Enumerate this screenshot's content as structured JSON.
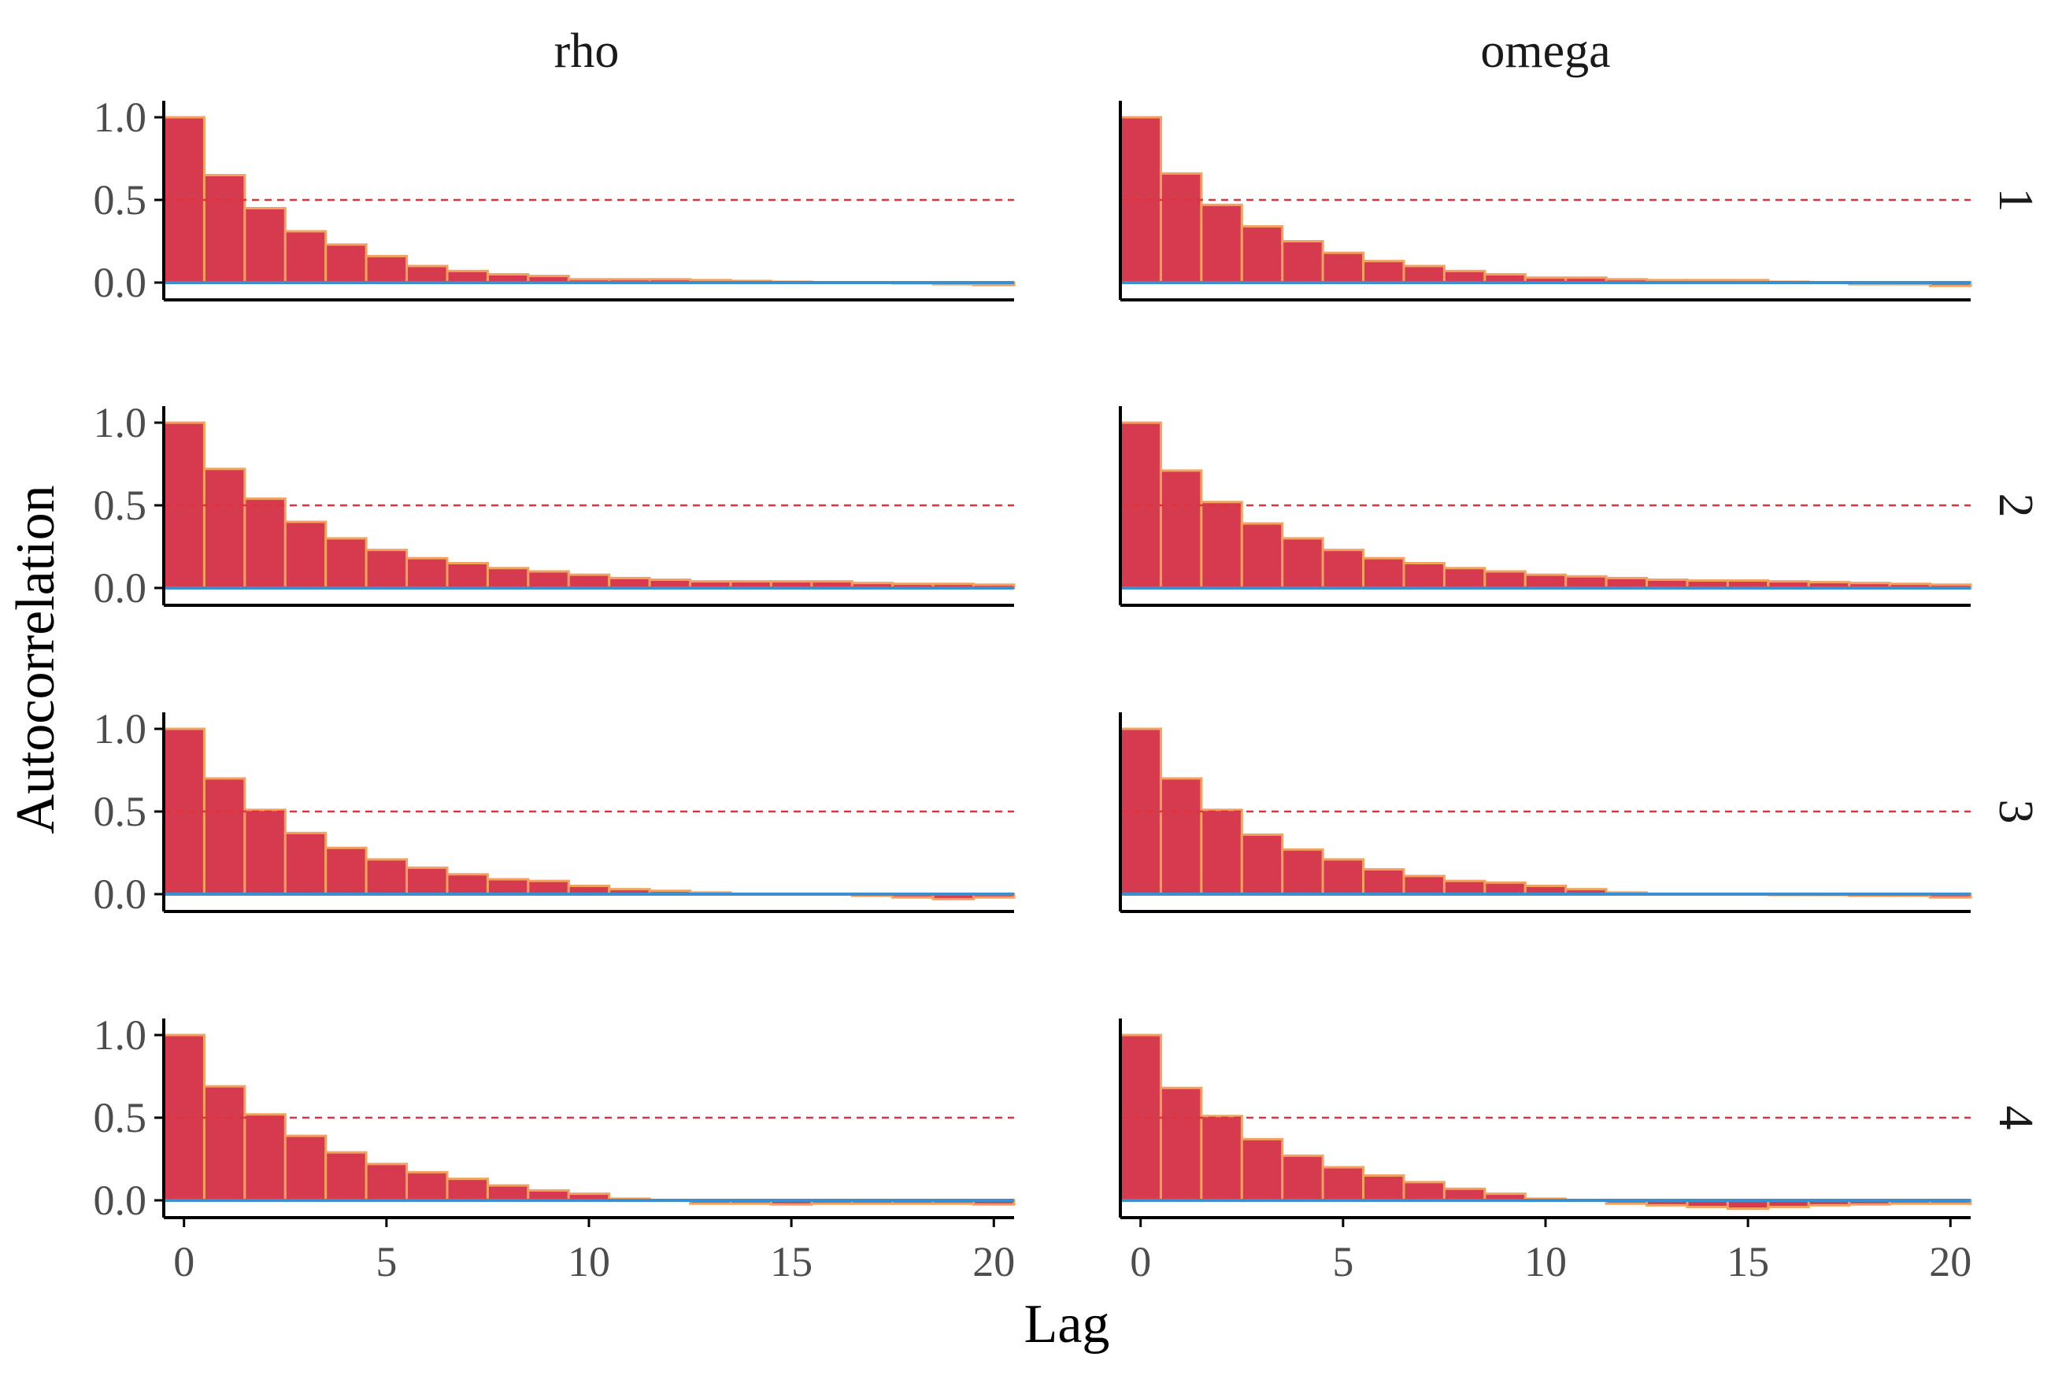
{
  "chart_data": {
    "type": "bar",
    "title": "",
    "xlabel": "Lag",
    "ylabel": "Autocorrelation",
    "columns": [
      "rho",
      "omega"
    ],
    "rows": [
      "1",
      "2",
      "3",
      "4"
    ],
    "x": [
      0,
      1,
      2,
      3,
      4,
      5,
      6,
      7,
      8,
      9,
      10,
      11,
      12,
      13,
      14,
      15,
      16,
      17,
      18,
      19,
      20
    ],
    "xlim": [
      -0.5,
      20.5
    ],
    "xticks": [
      "0",
      "5",
      "10",
      "15",
      "20"
    ],
    "xtick_values": [
      0,
      5,
      10,
      15,
      20
    ],
    "ylim": [
      -0.1,
      1.1
    ],
    "yticks": [
      "0.0",
      "0.5",
      "1.0"
    ],
    "ytick_values": [
      0.0,
      0.5,
      1.0
    ],
    "reference_line": 0.5,
    "zero_line": 0,
    "panels": [
      {
        "row": "1",
        "column": "rho",
        "values": [
          1.0,
          0.65,
          0.45,
          0.31,
          0.23,
          0.16,
          0.1,
          0.07,
          0.05,
          0.04,
          0.02,
          0.02,
          0.02,
          0.015,
          0.01,
          0.005,
          0.0,
          0.0,
          -0.005,
          -0.01,
          -0.015
        ]
      },
      {
        "row": "1",
        "column": "omega",
        "values": [
          1.0,
          0.66,
          0.47,
          0.34,
          0.25,
          0.18,
          0.13,
          0.1,
          0.07,
          0.05,
          0.03,
          0.03,
          0.02,
          0.015,
          0.015,
          0.015,
          0.005,
          0.0,
          -0.01,
          -0.01,
          -0.02
        ]
      },
      {
        "row": "2",
        "column": "rho",
        "values": [
          1.0,
          0.72,
          0.54,
          0.4,
          0.3,
          0.23,
          0.18,
          0.15,
          0.12,
          0.1,
          0.08,
          0.06,
          0.05,
          0.04,
          0.04,
          0.04,
          0.04,
          0.03,
          0.025,
          0.025,
          0.02
        ]
      },
      {
        "row": "2",
        "column": "omega",
        "values": [
          1.0,
          0.71,
          0.52,
          0.39,
          0.3,
          0.23,
          0.18,
          0.15,
          0.12,
          0.1,
          0.08,
          0.07,
          0.06,
          0.05,
          0.045,
          0.045,
          0.04,
          0.035,
          0.03,
          0.025,
          0.02
        ]
      },
      {
        "row": "3",
        "column": "rho",
        "values": [
          1.0,
          0.7,
          0.51,
          0.37,
          0.28,
          0.21,
          0.16,
          0.12,
          0.09,
          0.08,
          0.05,
          0.03,
          0.02,
          0.01,
          0.0,
          0.0,
          0.0,
          -0.01,
          -0.02,
          -0.03,
          -0.02
        ]
      },
      {
        "row": "3",
        "column": "omega",
        "values": [
          1.0,
          0.7,
          0.51,
          0.36,
          0.27,
          0.21,
          0.15,
          0.11,
          0.08,
          0.07,
          0.05,
          0.03,
          0.01,
          0.0,
          0.0,
          0.0,
          -0.005,
          -0.005,
          -0.01,
          -0.01,
          -0.02
        ]
      },
      {
        "row": "4",
        "column": "rho",
        "values": [
          1.0,
          0.69,
          0.52,
          0.39,
          0.29,
          0.22,
          0.17,
          0.13,
          0.09,
          0.06,
          0.04,
          0.01,
          0.0,
          -0.02,
          -0.02,
          -0.025,
          -0.02,
          -0.02,
          -0.02,
          -0.02,
          -0.025
        ]
      },
      {
        "row": "4",
        "column": "omega",
        "values": [
          1.0,
          0.68,
          0.51,
          0.37,
          0.27,
          0.2,
          0.15,
          0.11,
          0.07,
          0.04,
          0.01,
          0.0,
          -0.02,
          -0.03,
          -0.04,
          -0.05,
          -0.04,
          -0.03,
          -0.025,
          -0.02,
          -0.02
        ]
      }
    ]
  }
}
